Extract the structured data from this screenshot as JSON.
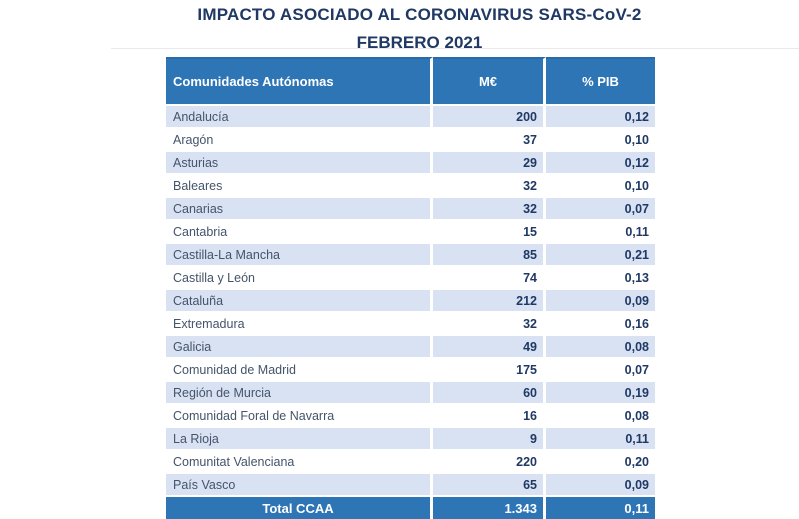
{
  "header": {
    "title_line1": "IMPACTO ASOCIADO AL CORONAVIRUS SARS-CoV-2",
    "title_line2": "FEBRERO 2021"
  },
  "table": {
    "columns": [
      "Comunidades Autónomas",
      "M€",
      "% PIB"
    ],
    "rows": [
      {
        "region": "Andalucía",
        "me": "200",
        "pib": "0,12"
      },
      {
        "region": "Aragón",
        "me": "37",
        "pib": "0,10"
      },
      {
        "region": "Asturias",
        "me": "29",
        "pib": "0,12"
      },
      {
        "region": "Baleares",
        "me": "32",
        "pib": "0,10"
      },
      {
        "region": "Canarias",
        "me": "32",
        "pib": "0,07"
      },
      {
        "region": "Cantabria",
        "me": "15",
        "pib": "0,11"
      },
      {
        "region": "Castilla-La Mancha",
        "me": "85",
        "pib": "0,21"
      },
      {
        "region": "Castilla y León",
        "me": "74",
        "pib": "0,13"
      },
      {
        "region": "Cataluña",
        "me": "212",
        "pib": "0,09"
      },
      {
        "region": "Extremadura",
        "me": "32",
        "pib": "0,16"
      },
      {
        "region": "Galicia",
        "me": "49",
        "pib": "0,08"
      },
      {
        "region": "Comunidad de Madrid",
        "me": "175",
        "pib": "0,07"
      },
      {
        "region": "Región de Murcia",
        "me": "60",
        "pib": "0,19"
      },
      {
        "region": "Comunidad Foral de Navarra",
        "me": "16",
        "pib": "0,08"
      },
      {
        "region": "La Rioja",
        "me": "9",
        "pib": "0,11"
      },
      {
        "region": "Comunitat Valenciana",
        "me": "220",
        "pib": "0,20"
      },
      {
        "region": "País Vasco",
        "me": "65",
        "pib": "0,09"
      }
    ],
    "total": {
      "label": "Total CCAA",
      "me": "1.343",
      "pib": "0,11"
    }
  },
  "colors": {
    "header_bg": "#2E75B6",
    "band_bg": "#D9E2F3",
    "title_text": "#1F3864",
    "value_text": "#1F3864",
    "label_text": "#44546A",
    "header_text": "#FFFFFF"
  }
}
